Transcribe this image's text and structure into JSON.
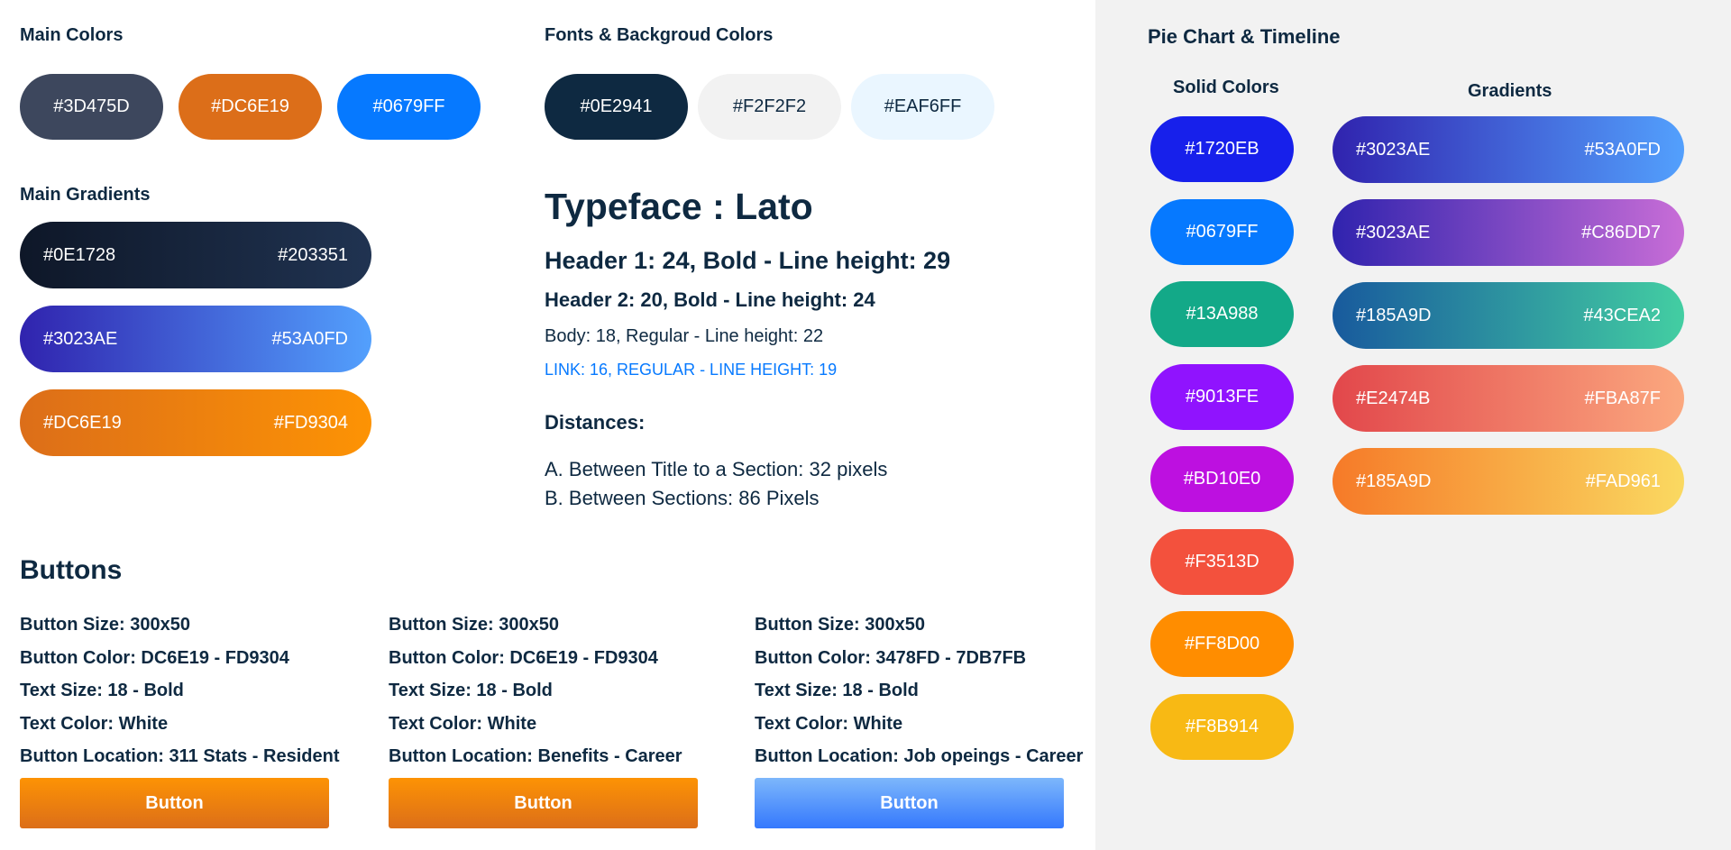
{
  "main_colors": {
    "title": "Main Colors",
    "swatches": [
      {
        "label": "#3D475D",
        "color": "#3D475D"
      },
      {
        "label": "#DC6E19",
        "color": "#DC6E19"
      },
      {
        "label": "#0679FF",
        "color": "#0679FF"
      }
    ]
  },
  "fonts_bg": {
    "title": "Fonts & Backgroud Colors",
    "swatches": [
      {
        "label": "#0E2941",
        "color": "#0E2941"
      },
      {
        "label": "#F2F2F2",
        "color": "#F2F2F2"
      },
      {
        "label": "#EAF6FF",
        "color": "#EAF6FF"
      }
    ]
  },
  "main_gradients": {
    "title": "Main Gradients",
    "items": [
      {
        "from": "#0E1728",
        "to": "#203351"
      },
      {
        "from": "#3023AE",
        "to": "#53A0FD"
      },
      {
        "from": "#DC6E19",
        "to": "#FD9304"
      }
    ]
  },
  "typeface": {
    "title": "Typeface : Lato",
    "header1": "Header 1:  24, Bold - Line height: 29",
    "header2": "Header 2:  20, Bold - Line height:  24",
    "body": "Body:  18, Regular - Line height: 22",
    "link": "LINK:  16, REGULAR - LINE HEIGHT: 19",
    "link_color": "#0679FF"
  },
  "distances": {
    "title": "Distances:",
    "a": "A. Between Title to a Section:  32 pixels",
    "b": "B. Between Sections: 86 Pixels"
  },
  "buttons": {
    "title": "Buttons",
    "specs": [
      {
        "size": "Button Size: 300x50",
        "color": "Button Color: DC6E19 - FD9304",
        "text_size": "Text Size: 18 - Bold",
        "text_color": "Text Color: White",
        "location": "Button Location: 311 Stats - Resident",
        "button_label": "Button",
        "gradient_from": "#DC6E19",
        "gradient_to": "#FD9304"
      },
      {
        "size": "Button Size: 300x50",
        "color": "Button Color: DC6E19 - FD9304",
        "text_size": "Text Size: 18 - Bold",
        "text_color": "Text Color: White",
        "location": "Button Location: Benefits - Career",
        "button_label": "Button",
        "gradient_from": "#DC6E19",
        "gradient_to": "#FD9304"
      },
      {
        "size": "Button Size: 300x50",
        "color": "Button Color: 3478FD - 7DB7FB",
        "text_size": "Text Size: 18 - Bold",
        "text_color": "Text Color: White",
        "location": "Button Location: Job opeings - Career",
        "button_label": "Button",
        "gradient_from": "#3478FD",
        "gradient_to": "#7DB7FB"
      }
    ]
  },
  "pie_timeline": {
    "title": "Pie Chart & Timeline",
    "solid_title": "Solid Colors",
    "gradients_title": "Gradients",
    "solids": [
      {
        "label": "#1720EB",
        "color": "#1720EB"
      },
      {
        "label": "#0679FF",
        "color": "#0679FF"
      },
      {
        "label": "#13A988",
        "color": "#13A988"
      },
      {
        "label": "#9013FE",
        "color": "#9013FE"
      },
      {
        "label": "#BD10E0",
        "color": "#BD10E0"
      },
      {
        "label": "#F3513D",
        "color": "#F3513D"
      },
      {
        "label": "#FF8D00",
        "color": "#FF8D00"
      },
      {
        "label": "#F8B914",
        "color": "#F8B914"
      }
    ],
    "gradients": [
      {
        "from": "#3023AE",
        "to": "#53A0FD"
      },
      {
        "from": "#3023AE",
        "to": "#C86DD7"
      },
      {
        "from": "#185A9D",
        "to": "#43CEA2"
      },
      {
        "from": "#E2474B",
        "to": "#FBA87F"
      },
      {
        "from": "#185A9D",
        "to": "#FAD961",
        "render_from": "#F67A28"
      }
    ]
  }
}
